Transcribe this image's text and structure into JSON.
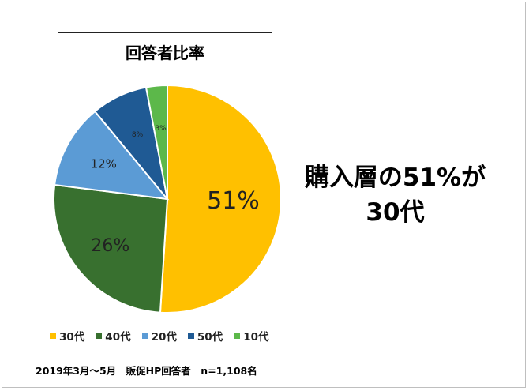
{
  "chart_data": {
    "type": "pie",
    "title": "回答者比率",
    "categories": [
      "30代",
      "40代",
      "20代",
      "50代",
      "10代"
    ],
    "values": [
      51,
      26,
      12,
      8,
      3
    ],
    "labels": [
      "51%",
      "26%",
      "12%",
      "8%",
      "3%"
    ],
    "colors": [
      "#FFC000",
      "#38702F",
      "#5B9BD5",
      "#1F5A94",
      "#5CB84A"
    ],
    "legend_position": "bottom",
    "start_angle": "12 o'clock",
    "direction": "clockwise"
  },
  "headline": {
    "line1": "購入層の51%が",
    "line2": "30代"
  },
  "footnote": "2019年3月～5月　販促HP回答者　n=1,108名"
}
